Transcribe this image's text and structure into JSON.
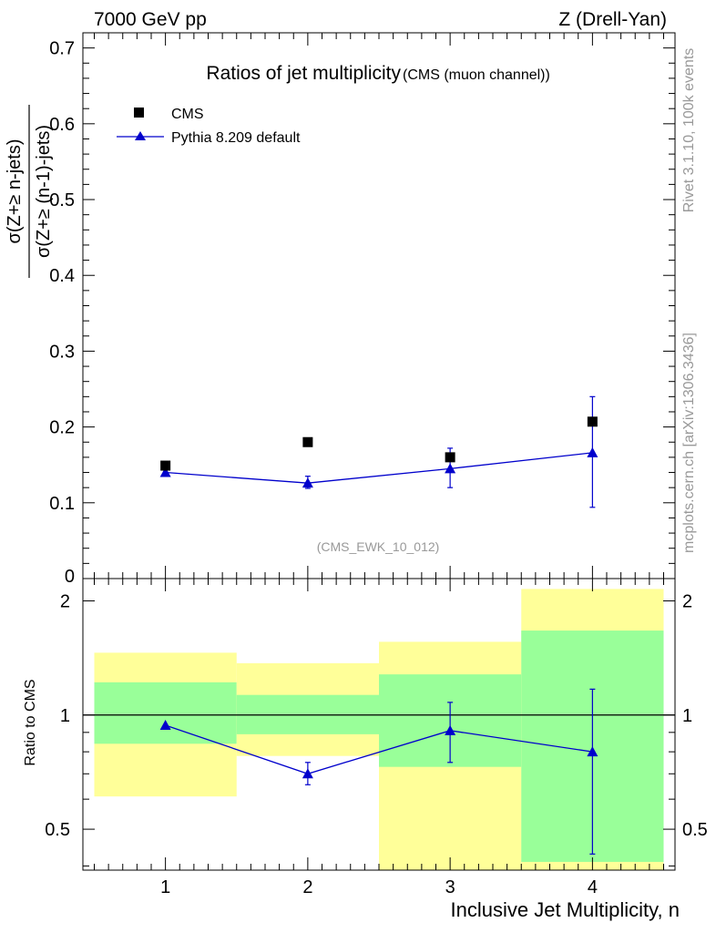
{
  "header": {
    "left": "7000 GeV pp",
    "right": "Z (Drell-Yan)"
  },
  "side_labels": {
    "rivet": "Rivet 3.1.10,  100k events",
    "mcplots": "mcplots.cern.ch [arXiv:1306.3436]"
  },
  "colors": {
    "mc": "#0000cc",
    "data": "#000000",
    "band_inner": "#99ff99",
    "band_outer": "#ffff99"
  },
  "chart_data": [
    {
      "type": "scatter",
      "title": "Ratios of jet multiplicity",
      "subtitle": "(CMS (muon channel))",
      "ylabel_num": "σ(Z+≥ n-jets)",
      "ylabel_den": "σ(Z+≥ (n-1)-jets)",
      "xlabel": "",
      "ylim": [
        0,
        0.72
      ],
      "xlim": [
        0.42,
        4.58
      ],
      "yticks": [
        "0.1",
        "0.2",
        "0.3",
        "0.4",
        "0.5",
        "0.6",
        "0.7"
      ],
      "y_bottom_tick": "0",
      "watermark": "(CMS_EWK_10_012)",
      "legend_position": "top-left",
      "series": [
        {
          "name": "CMS",
          "marker": "square",
          "x": [
            1,
            2,
            3,
            4
          ],
          "y": [
            0.149,
            0.18,
            0.16,
            0.207
          ]
        },
        {
          "name": "Pythia 8.209 default",
          "marker": "triangle",
          "x": [
            1,
            2,
            3,
            4
          ],
          "y": [
            0.14,
            0.126,
            0.145,
            0.166
          ],
          "err_low": [
            0.0,
            0.007,
            0.025,
            0.072
          ],
          "err_high": [
            0.0,
            0.009,
            0.027,
            0.074
          ]
        }
      ]
    },
    {
      "type": "scatter",
      "ylabel": "Ratio to CMS",
      "xlabel": "Inclusive Jet Multiplicity, n",
      "ylim_log": [
        0.39,
        2.29
      ],
      "xlim": [
        0.42,
        4.58
      ],
      "yticks": [
        "0.5",
        "1",
        "2"
      ],
      "xticks": [
        "1",
        "2",
        "3",
        "4"
      ],
      "reference_line": 1,
      "bands": [
        {
          "x_lo": 0.5,
          "x_hi": 1.5,
          "inner": [
            0.84,
            1.22
          ],
          "outer": [
            0.61,
            1.46
          ]
        },
        {
          "x_lo": 1.5,
          "x_hi": 2.5,
          "inner": [
            0.89,
            1.13
          ],
          "outer": [
            0.78,
            1.37
          ]
        },
        {
          "x_lo": 2.5,
          "x_hi": 3.5,
          "inner": [
            0.73,
            1.28
          ],
          "outer": [
            0.3,
            1.56
          ]
        },
        {
          "x_lo": 3.5,
          "x_hi": 4.5,
          "inner": [
            0.41,
            1.67
          ],
          "outer": [
            0.3,
            2.15
          ]
        }
      ],
      "series": [
        {
          "name": "Pythia 8.209 default",
          "x": [
            1,
            2,
            3,
            4
          ],
          "y": [
            0.94,
            0.7,
            0.91,
            0.8
          ],
          "err_low": [
            0.0,
            0.045,
            0.16,
            0.37
          ],
          "err_high": [
            0.0,
            0.05,
            0.17,
            0.37
          ]
        }
      ]
    }
  ]
}
